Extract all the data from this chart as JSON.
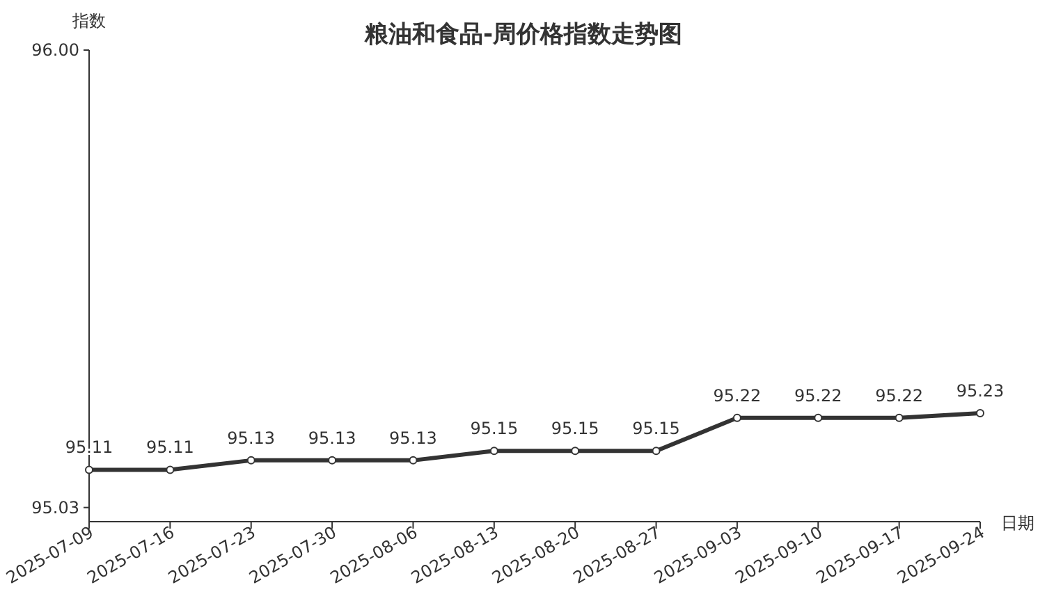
{
  "chart_data": {
    "type": "line",
    "title": "粮油和食品-周价格指数走势图",
    "xlabel": "日期",
    "ylabel": "指数",
    "categories": [
      "2025-07-09",
      "2025-07-16",
      "2025-07-23",
      "2025-07-30",
      "2025-08-06",
      "2025-08-13",
      "2025-08-20",
      "2025-08-27",
      "2025-09-03",
      "2025-09-10",
      "2025-09-17",
      "2025-09-24"
    ],
    "series": [
      {
        "color": "#333333",
        "values": [
          95.11,
          95.11,
          95.13,
          95.13,
          95.13,
          95.15,
          95.15,
          95.15,
          95.22,
          95.22,
          95.22,
          95.23
        ]
      }
    ],
    "ylim": [
      95.0,
      96.0
    ],
    "yticks": [
      {
        "value": 95.03,
        "label": "95.03"
      },
      {
        "value": 96.0,
        "label": "96.00"
      }
    ],
    "data_labels": true,
    "marker": "circle",
    "line_style": "solid"
  }
}
